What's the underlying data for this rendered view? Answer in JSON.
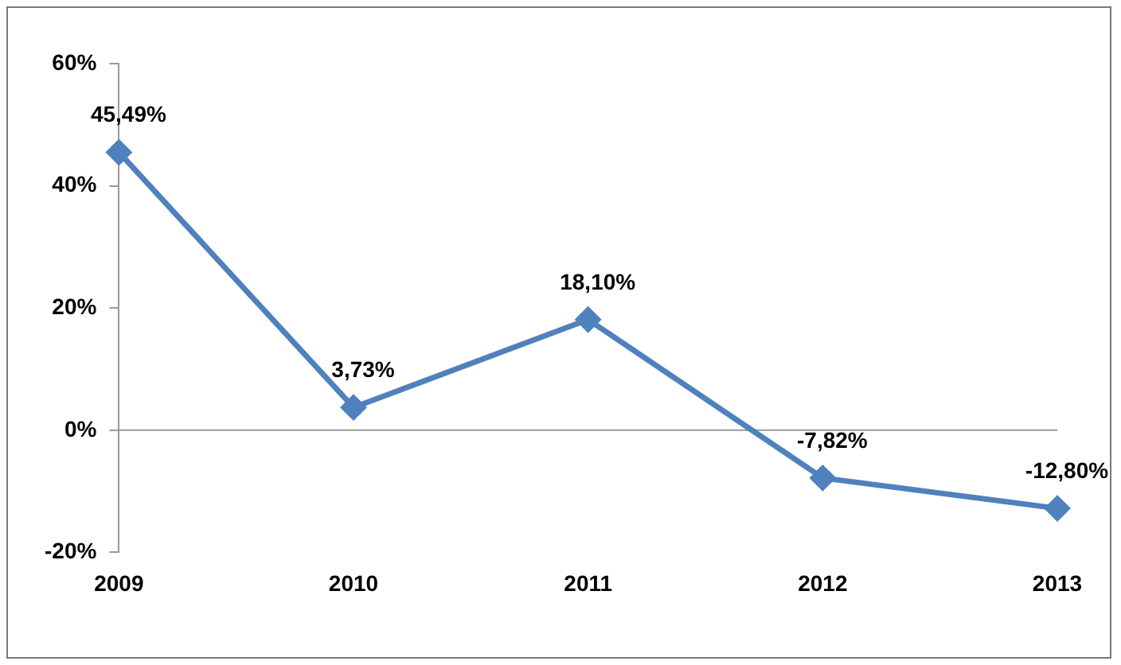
{
  "chart_data": {
    "type": "line",
    "categories": [
      "2009",
      "2010",
      "2011",
      "2012",
      "2013"
    ],
    "series": [
      {
        "color": "#4f81bd",
        "values": [
          45.49,
          3.73,
          18.1,
          -7.82,
          -12.8
        ],
        "value_labels": [
          "45,49%",
          "3,73%",
          "18,10%",
          "-7,82%",
          "-12,80%"
        ]
      }
    ],
    "ylim": [
      -20,
      60
    ],
    "yticks": [
      {
        "value": -20,
        "label": "-20%"
      },
      {
        "value": 0,
        "label": "0%"
      },
      {
        "value": 20,
        "label": "20%"
      },
      {
        "value": 40,
        "label": "40%"
      },
      {
        "value": 60,
        "label": "60%"
      }
    ],
    "ref_lines": [
      {
        "axis": "y",
        "value": 0,
        "color": "#999999"
      }
    ],
    "marker": "diamond",
    "line_style": "solid",
    "grid": false,
    "legend": false
  }
}
